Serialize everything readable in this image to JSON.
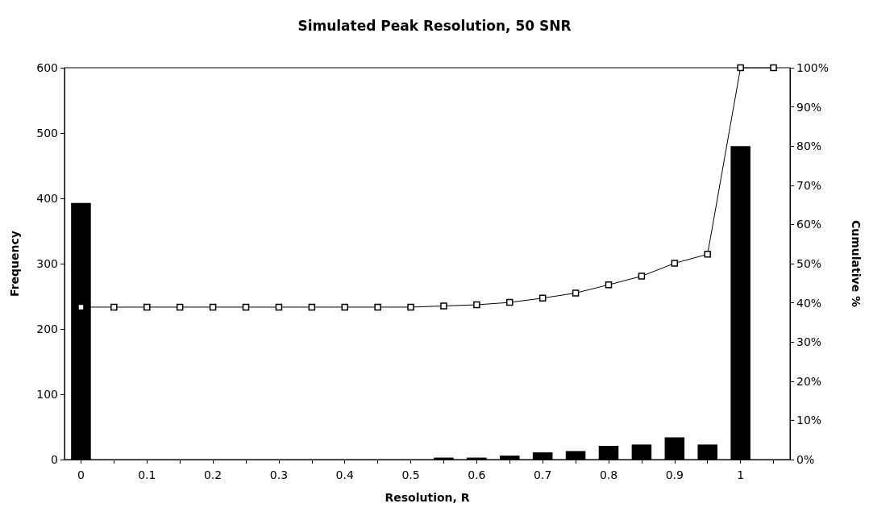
{
  "chart_data": {
    "type": "bar",
    "title": "Simulated Peak Resolution, 50 SNR",
    "xlabel": "Resolution, R",
    "ylabel": "Frequency",
    "y2label": "Cumulative %",
    "categories": [
      "0",
      null,
      "0.1",
      null,
      "0.2",
      null,
      "0.3",
      null,
      "0.4",
      null,
      "0.5",
      null,
      "0.6",
      null,
      "0.7",
      null,
      "0.8",
      null,
      "0.9",
      null,
      "1",
      null
    ],
    "series": [
      {
        "color": "#000000",
        "values": [
          393,
          0,
          0,
          0,
          0,
          0,
          0,
          0,
          0,
          0,
          0,
          3,
          3,
          6,
          11,
          13,
          21,
          23,
          34,
          23,
          480,
          0
        ]
      },
      {
        "type": "line",
        "axis": "y2",
        "color": "#000000",
        "marker": "square",
        "line_style": "solid",
        "values": [
          38.9,
          38.9,
          38.9,
          38.9,
          38.9,
          38.9,
          38.9,
          38.9,
          38.9,
          38.9,
          38.9,
          39.2,
          39.5,
          40.1,
          41.2,
          42.5,
          44.6,
          46.8,
          50.1,
          52.4,
          100,
          100
        ]
      }
    ],
    "ylim": [
      0,
      600
    ],
    "yticks": [
      0,
      100,
      200,
      300,
      400,
      500,
      600
    ],
    "y2lim": [
      0,
      100
    ],
    "y2ticks": [
      {
        "value": 0,
        "label": "0%"
      },
      {
        "value": 10,
        "label": "10%"
      },
      {
        "value": 20,
        "label": "20%"
      },
      {
        "value": 30,
        "label": "30%"
      },
      {
        "value": 40,
        "label": "40%"
      },
      {
        "value": 50,
        "label": "50%"
      },
      {
        "value": 60,
        "label": "60%"
      },
      {
        "value": 70,
        "label": "70%"
      },
      {
        "value": 80,
        "label": "80%"
      },
      {
        "value": 90,
        "label": "90%"
      },
      {
        "value": 100,
        "label": "100%"
      }
    ],
    "grid": false
  }
}
